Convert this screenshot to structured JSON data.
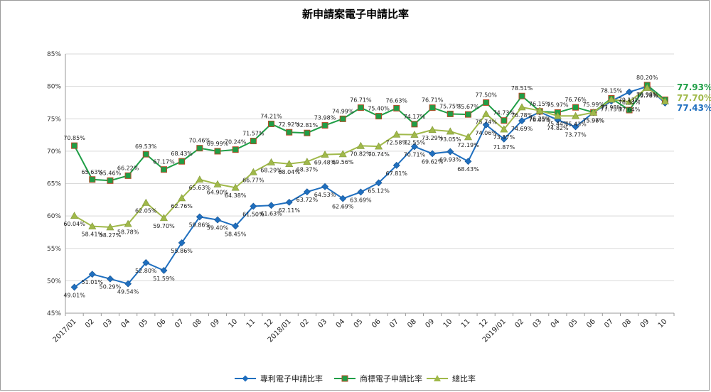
{
  "chart_data": {
    "type": "line",
    "title": "新申請案電子申請比率",
    "xlabel": "",
    "ylabel": "",
    "ylim": [
      45,
      85
    ],
    "yticks": [
      "45%",
      "50%",
      "55%",
      "60%",
      "65%",
      "70%",
      "75%",
      "80%",
      "85%"
    ],
    "ytick_values": [
      45,
      50,
      55,
      60,
      65,
      70,
      75,
      80,
      85
    ],
    "categories": [
      "2017/01",
      "02",
      "03",
      "04",
      "05",
      "06",
      "07",
      "08",
      "09",
      "10",
      "11",
      "12",
      "2018/01",
      "02",
      "03",
      "04",
      "05",
      "06",
      "07",
      "08",
      "09",
      "10",
      "11",
      "12",
      "2019/01",
      "02",
      "03",
      "04",
      "05",
      "06",
      "07",
      "08",
      "09",
      "10"
    ],
    "grid": "horizontal",
    "legend_position": "bottom",
    "series": [
      {
        "name": "專利電子申請比率",
        "color": "#1f6fbf",
        "marker": "diamond",
        "values": [
          49.01,
          51.01,
          50.29,
          49.54,
          52.8,
          51.59,
          55.86,
          59.86,
          59.4,
          58.45,
          61.5,
          61.63,
          62.11,
          63.72,
          64.53,
          62.69,
          63.69,
          65.12,
          67.81,
          70.71,
          69.62,
          69.93,
          68.43,
          74.06,
          71.87,
          74.69,
          76.05,
          74.82,
          73.77,
          75.96,
          77.73,
          79.13,
          79.98,
          77.43
        ],
        "labels": [
          "49.01%",
          "51.01%",
          "50.29%",
          "49.54%",
          "52.80%",
          "51.59%",
          "55.86%",
          "59.86%",
          "59.40%",
          "58.45%",
          "61.50%",
          "61.63%",
          "62.11%",
          "63.72%",
          "64.53%",
          "62.69%",
          "63.69%",
          "65.12%",
          "67.81%",
          "70.71%",
          "69.62%",
          "69.93%",
          "68.43%",
          "74.06%",
          "71.87%",
          "74.69%",
          "76.05%",
          "74.82%",
          "73.77%",
          "75.96%",
          "77.73%",
          "79.13%",
          "79.98%",
          ""
        ],
        "end_label": "77.43%"
      },
      {
        "name": "商標電子申請比率",
        "color": "#1f9e46",
        "marker": "square",
        "values": [
          70.85,
          65.63,
          65.46,
          66.22,
          69.53,
          67.17,
          68.43,
          70.46,
          69.99,
          70.24,
          71.57,
          74.21,
          72.92,
          72.81,
          73.98,
          74.99,
          76.71,
          75.4,
          76.63,
          74.17,
          76.71,
          75.75,
          75.67,
          77.5,
          74.73,
          78.51,
          76.15,
          75.97,
          76.76,
          75.99,
          78.15,
          76.34,
          80.2,
          77.93
        ],
        "labels": [
          "70.85%",
          "65.63%",
          "65.46%",
          "66.22%",
          "69.53%",
          "67.17%",
          "68.43%",
          "70.46%",
          "69.99%",
          "70.24%",
          "71.57%",
          "74.21%",
          "72.92%",
          "72.81%",
          "73.98%",
          "74.99%",
          "76.71%",
          "75.40%",
          "76.63%",
          "74.17%",
          "76.71%",
          "75.75%",
          "75.67%",
          "77.50%",
          "74.73%",
          "78.51%",
          "76.15%",
          "75.97%",
          "76.76%",
          "75.99%",
          "78.15%",
          "76.34%",
          "80.20%",
          ""
        ],
        "end_label": "77.93%"
      },
      {
        "name": "總比率",
        "color": "#a0b94a",
        "marker": "triangle",
        "values": [
          60.04,
          58.41,
          58.27,
          58.78,
          62.05,
          59.7,
          62.76,
          65.63,
          64.9,
          64.38,
          66.77,
          68.29,
          68.04,
          68.37,
          69.48,
          69.56,
          70.82,
          70.74,
          72.58,
          72.55,
          73.29,
          73.05,
          72.19,
          75.74,
          73.37,
          76.78,
          76.25,
          75.44,
          75.43,
          75.97,
          77.98,
          77.64,
          79.78,
          77.7
        ],
        "labels": [
          "60.04%",
          "58.41%",
          "58.27%",
          "58.78%",
          "62.05%",
          "59.70%",
          "62.76%",
          "65.63%",
          "64.90%",
          "64.38%",
          "66.77%",
          "68.29%",
          "68.04%",
          "68.37%",
          "69.48%",
          "69.56%",
          "70.82%",
          "70.74%",
          "72.58%",
          "72.55%",
          "73.29%",
          "73.05%",
          "72.19%",
          "75.74%",
          "73.37%",
          "76.78%",
          "76.25%",
          "75.44%",
          "75.43%",
          "75.97%",
          "77.98%",
          "77.64%",
          "79.78%",
          ""
        ],
        "end_label": "77.70%"
      }
    ]
  }
}
